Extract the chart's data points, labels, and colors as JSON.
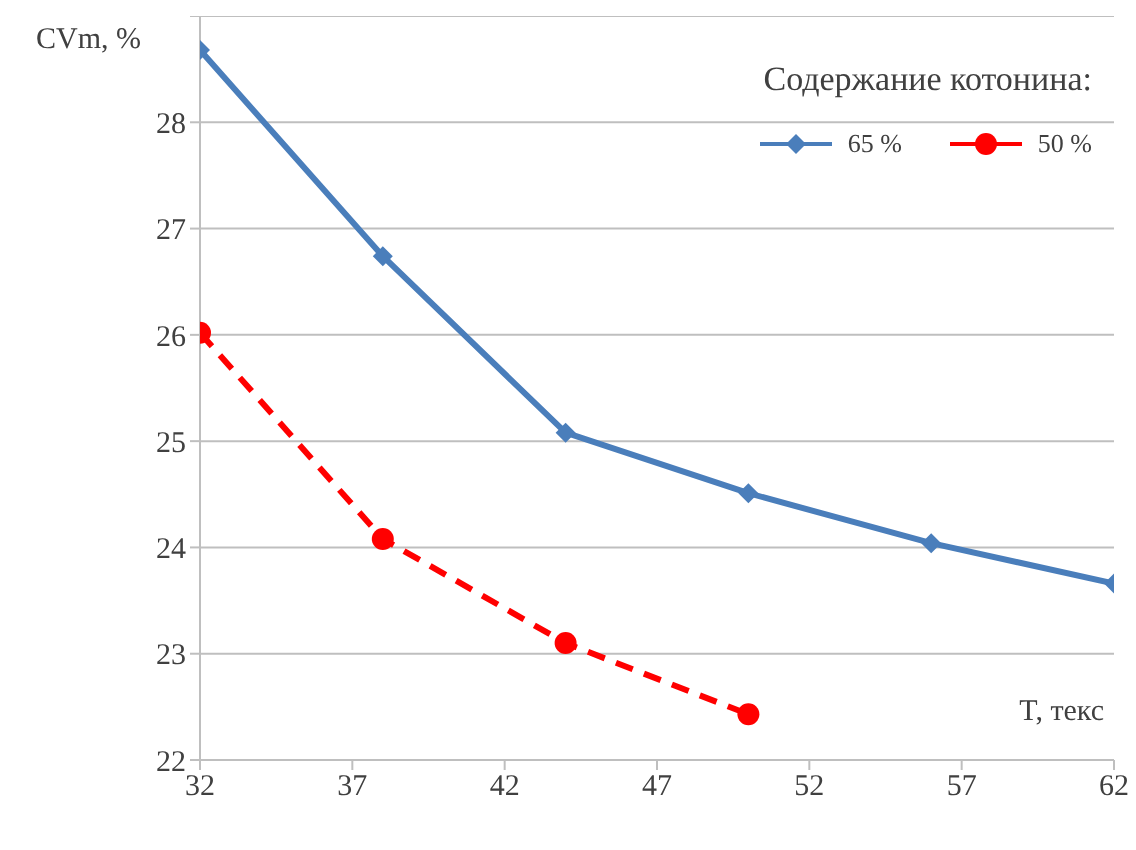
{
  "chart_data": {
    "type": "line",
    "xlabel": "T, текс",
    "ylabel": "CVm, %",
    "legend_title": "Содержание котонина:",
    "legend": "top right",
    "grid": "y",
    "xlim": [
      32,
      62
    ],
    "xticks": [
      32,
      37,
      42,
      47,
      52,
      57,
      62
    ],
    "ylim": [
      22,
      29
    ],
    "yticks": [
      22,
      23,
      24,
      25,
      26,
      27,
      28,
      {
        "value": 29,
        "label": null
      }
    ],
    "x": [
      32,
      38,
      44,
      50,
      56,
      62
    ],
    "series": [
      {
        "name": "65 %",
        "color": "#4a7ebb",
        "values": [
          28.68,
          26.74,
          25.08,
          24.51,
          24.04,
          23.66
        ],
        "marker": "diamond",
        "line_style": "solid"
      },
      {
        "name": "50 %",
        "color": "#ff0000",
        "values": [
          26.02,
          24.08,
          23.1,
          22.43,
          null,
          null
        ],
        "marker": "circle",
        "line_style": "dashed"
      }
    ]
  }
}
